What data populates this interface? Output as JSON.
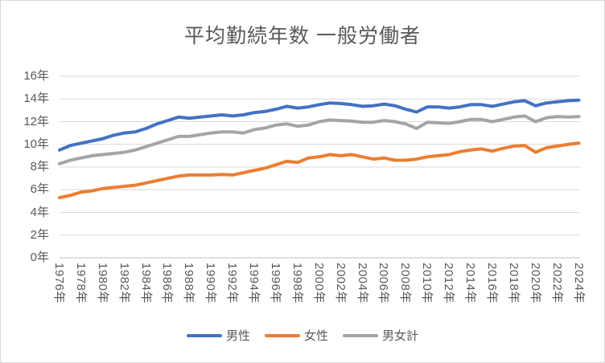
{
  "title": "平均勤続年数 一般労働者",
  "colors": {
    "title_text": "#595959",
    "axis_text": "#595959",
    "gridline": "#d9d9d9",
    "axis_line": "#bfbfbf",
    "border": "#d9d9d9",
    "male": "#4472C4",
    "female": "#ED7D31",
    "total": "#A5A5A5"
  },
  "chart_data": {
    "type": "line",
    "title": "平均勤続年数 一般労働者",
    "xlabel": "",
    "ylabel": "",
    "ylim": [
      0,
      16
    ],
    "y_tick_step": 2,
    "grid": true,
    "legend_position": "bottom",
    "y_tick_labels": [
      "0年",
      "2年",
      "4年",
      "6年",
      "8年",
      "10年",
      "12年",
      "14年",
      "16年"
    ],
    "x_tick_labels": [
      "1976年",
      "1978年",
      "1980年",
      "1982年",
      "1984年",
      "1986年",
      "1988年",
      "1990年",
      "1992年",
      "1994年",
      "1996年",
      "1998年",
      "2000年",
      "2002年",
      "2004年",
      "2006年",
      "2008年",
      "2010年",
      "2012年",
      "2014年",
      "2016年",
      "2018年",
      "2020年",
      "2022年",
      "2024年"
    ],
    "x": [
      1976,
      1977,
      1978,
      1979,
      1980,
      1981,
      1982,
      1983,
      1984,
      1985,
      1986,
      1987,
      1988,
      1989,
      1990,
      1991,
      1992,
      1993,
      1994,
      1995,
      1996,
      1997,
      1998,
      1999,
      2000,
      2001,
      2002,
      2003,
      2004,
      2005,
      2006,
      2007,
      2008,
      2009,
      2010,
      2011,
      2012,
      2013,
      2014,
      2015,
      2016,
      2017,
      2018,
      2019,
      2020,
      2021,
      2022,
      2023,
      2024
    ],
    "series": [
      {
        "key": "male",
        "name": "男性",
        "color": "#4472C4",
        "values": [
          9.5,
          9.9,
          10.1,
          10.3,
          10.5,
          10.8,
          11.0,
          11.1,
          11.4,
          11.8,
          12.1,
          12.4,
          12.3,
          12.4,
          12.5,
          12.6,
          12.5,
          12.6,
          12.8,
          12.9,
          13.1,
          13.35,
          13.2,
          13.3,
          13.5,
          13.65,
          13.6,
          13.5,
          13.35,
          13.4,
          13.55,
          13.4,
          13.1,
          12.85,
          13.3,
          13.3,
          13.2,
          13.3,
          13.5,
          13.5,
          13.35,
          13.55,
          13.75,
          13.85,
          13.4,
          13.65,
          13.75,
          13.85,
          13.9
        ]
      },
      {
        "key": "female",
        "name": "女性",
        "color": "#ED7D31",
        "values": [
          5.3,
          5.5,
          5.8,
          5.9,
          6.1,
          6.2,
          6.3,
          6.4,
          6.6,
          6.8,
          7.0,
          7.2,
          7.3,
          7.3,
          7.3,
          7.35,
          7.3,
          7.5,
          7.7,
          7.9,
          8.2,
          8.5,
          8.4,
          8.8,
          8.9,
          9.1,
          9.0,
          9.1,
          8.9,
          8.7,
          8.8,
          8.6,
          8.6,
          8.7,
          8.9,
          9.0,
          9.1,
          9.35,
          9.5,
          9.6,
          9.4,
          9.65,
          9.85,
          9.9,
          9.3,
          9.7,
          9.85,
          10.0,
          10.1
        ]
      },
      {
        "key": "total",
        "name": "男女計",
        "color": "#A5A5A5",
        "values": [
          8.3,
          8.6,
          8.8,
          9.0,
          9.1,
          9.2,
          9.3,
          9.5,
          9.8,
          10.1,
          10.4,
          10.7,
          10.7,
          10.85,
          11.0,
          11.1,
          11.1,
          11.0,
          11.3,
          11.45,
          11.7,
          11.8,
          11.6,
          11.7,
          12.0,
          12.15,
          12.1,
          12.05,
          11.95,
          11.95,
          12.1,
          12.0,
          11.8,
          11.4,
          11.95,
          11.9,
          11.85,
          12.0,
          12.2,
          12.2,
          12.0,
          12.2,
          12.4,
          12.5,
          12.0,
          12.35,
          12.45,
          12.4,
          12.45
        ]
      }
    ]
  }
}
